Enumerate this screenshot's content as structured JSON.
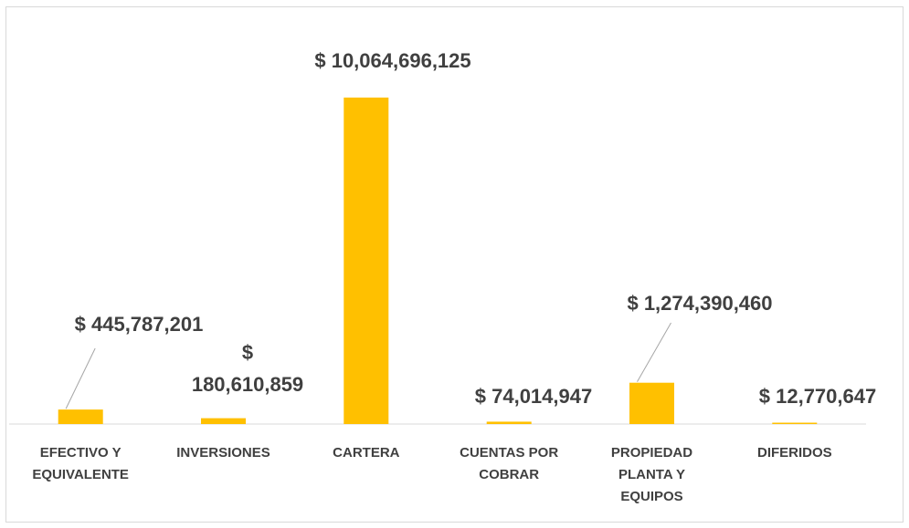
{
  "chart_data": {
    "type": "bar",
    "categories": [
      [
        "EFECTIVO Y",
        "EQUIVALENTE"
      ],
      [
        "INVERSIONES"
      ],
      [
        "CARTERA"
      ],
      [
        "CUENTAS POR",
        "COBRAR"
      ],
      [
        "PROPIEDAD",
        "PLANTA Y",
        "EQUIPOS"
      ],
      [
        "DIFERIDOS"
      ]
    ],
    "values": [
      445787201,
      180610859,
      10064696125,
      74014947,
      1274390460,
      12770647
    ],
    "data_labels": [
      [
        "$ 445,787,201"
      ],
      [
        "$",
        "180,610,859"
      ],
      [
        "$ 10,064,696,125"
      ],
      [
        "$ 74,014,947"
      ],
      [
        "$ 1,274,390,460"
      ],
      [
        "$ 12,770,647"
      ]
    ],
    "title": "",
    "xlabel": "",
    "ylabel": "",
    "ylim": [
      0,
      10064696125
    ],
    "grid": false,
    "legend": "none",
    "bar_color": "#FFC000",
    "axis_color": "#d9d9d9",
    "label_color": "#404040",
    "leader_color": "#a6a6a6"
  }
}
